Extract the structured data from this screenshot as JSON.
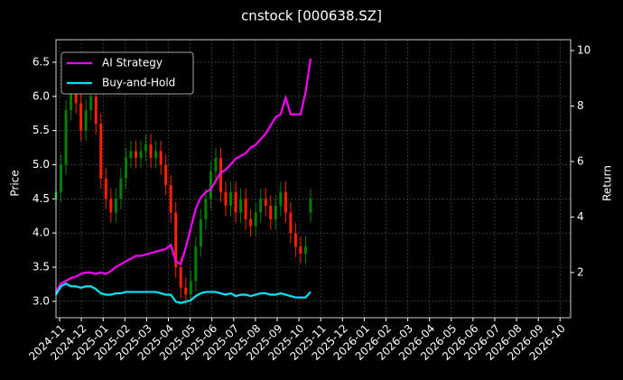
{
  "chart_data": {
    "type": "candlestick",
    "title": "cnstock [000638.SZ]",
    "y_label": "Price",
    "y2_label": "Return",
    "grid": true,
    "legend": "upper left",
    "up_color": "#008000",
    "down_color": "#ff2000",
    "xticks": [
      "2024-11",
      "2024-12",
      "2025-01",
      "2025-02",
      "2025-03",
      "2025-04",
      "2025-05",
      "2025-06",
      "2025-07",
      "2025-08",
      "2025-09",
      "2025-10",
      "2025-11",
      "2025-12",
      "2026-01",
      "2026-02",
      "2026-03",
      "2026-04",
      "2026-05",
      "2026-06",
      "2026-07",
      "2026-08",
      "2026-09",
      "2026-10"
    ],
    "ylim": [
      2.76,
      6.83
    ],
    "yticks": [
      {
        "value": 3,
        "label": "3.0"
      },
      3.5,
      {
        "value": 4,
        "label": "4.0"
      },
      4.5,
      {
        "value": 5,
        "label": "5.0"
      },
      5.5,
      {
        "value": 6,
        "label": "6.0"
      },
      6.5
    ],
    "y2lim": [
      0.37,
      10.39
    ],
    "y2ticks": [
      2,
      4,
      6,
      8,
      10
    ],
    "open": [
      4.5,
      4.6,
      5.0,
      5.8,
      6.2,
      5.9,
      5.5,
      5.8,
      6.0,
      5.6,
      4.8,
      4.5,
      4.3,
      4.5,
      4.8,
      5.1,
      5.2,
      5.1,
      5.2,
      5.3,
      5.1,
      5.2,
      5.0,
      4.7,
      4.3,
      3.5,
      3.2,
      3.1,
      3.3,
      3.8,
      4.2,
      4.5,
      4.9,
      5.1,
      4.6,
      4.4,
      4.6,
      4.3,
      4.5,
      4.2,
      4.1,
      4.3,
      4.5,
      4.4,
      4.2,
      4.4,
      4.6,
      4.3,
      4.0,
      3.8,
      3.7,
      4.3
    ],
    "high": [
      4.75,
      5.15,
      5.95,
      6.35,
      6.35,
      6.05,
      5.95,
      6.15,
      6.15,
      5.75,
      4.95,
      4.65,
      4.65,
      4.95,
      5.25,
      5.35,
      5.35,
      5.35,
      5.45,
      5.45,
      5.35,
      5.35,
      5.15,
      4.85,
      4.45,
      3.65,
      3.35,
      3.45,
      3.95,
      4.35,
      4.65,
      5.05,
      5.25,
      5.25,
      4.75,
      4.75,
      4.75,
      4.65,
      4.65,
      4.35,
      4.45,
      4.65,
      4.65,
      4.55,
      4.55,
      4.75,
      4.75,
      4.45,
      4.15,
      3.95,
      3.95,
      4.65
    ],
    "low": [
      4.35,
      4.45,
      4.85,
      5.65,
      5.75,
      5.35,
      5.35,
      5.65,
      5.45,
      4.65,
      4.35,
      4.15,
      4.15,
      4.35,
      4.65,
      4.95,
      4.95,
      4.95,
      5.05,
      4.95,
      4.95,
      4.85,
      4.55,
      4.15,
      3.35,
      3.05,
      2.95,
      2.95,
      3.15,
      3.65,
      4.05,
      4.35,
      4.75,
      4.45,
      4.25,
      4.25,
      4.15,
      4.15,
      4.05,
      3.95,
      3.95,
      4.15,
      4.25,
      4.05,
      4.05,
      4.25,
      4.15,
      3.85,
      3.65,
      3.55,
      3.55,
      4.15
    ],
    "close": [
      4.6,
      5.0,
      5.8,
      6.2,
      5.9,
      5.5,
      5.8,
      6.0,
      5.6,
      4.8,
      4.5,
      4.3,
      4.5,
      4.8,
      5.1,
      5.2,
      5.1,
      5.2,
      5.3,
      5.1,
      5.2,
      5.0,
      4.7,
      4.3,
      3.5,
      3.2,
      3.1,
      3.3,
      3.8,
      4.2,
      4.5,
      4.9,
      5.1,
      4.6,
      4.4,
      4.6,
      4.3,
      4.5,
      4.2,
      4.1,
      4.3,
      4.5,
      4.4,
      4.2,
      4.4,
      4.6,
      4.3,
      4.0,
      3.8,
      3.7,
      3.8,
      4.5
    ],
    "series": [
      {
        "name": "AI Strategy",
        "color": "#ff00ff",
        "axis": "y2",
        "values": [
          1.3,
          1.6,
          1.7,
          1.8,
          1.85,
          1.95,
          2.0,
          2.0,
          1.95,
          2.0,
          1.95,
          2.05,
          2.2,
          2.3,
          2.4,
          2.5,
          2.6,
          2.6,
          2.65,
          2.7,
          2.75,
          2.8,
          2.85,
          3.0,
          2.4,
          2.3,
          2.9,
          3.6,
          4.3,
          4.7,
          4.9,
          5.0,
          5.3,
          5.6,
          5.7,
          5.9,
          6.1,
          6.2,
          6.3,
          6.5,
          6.6,
          6.8,
          7.0,
          7.3,
          7.6,
          7.7,
          8.3,
          7.7,
          7.7,
          7.7,
          8.5,
          9.7
        ]
      },
      {
        "name": "Buy-and-Hold",
        "color": "#00e5ff",
        "axis": "y2",
        "values": [
          1.2,
          1.5,
          1.6,
          1.5,
          1.5,
          1.45,
          1.5,
          1.5,
          1.4,
          1.25,
          1.2,
          1.2,
          1.25,
          1.25,
          1.3,
          1.3,
          1.3,
          1.3,
          1.3,
          1.3,
          1.3,
          1.25,
          1.2,
          1.2,
          0.95,
          0.9,
          0.95,
          1.0,
          1.15,
          1.25,
          1.3,
          1.3,
          1.3,
          1.25,
          1.2,
          1.25,
          1.15,
          1.2,
          1.2,
          1.15,
          1.2,
          1.25,
          1.25,
          1.2,
          1.2,
          1.25,
          1.2,
          1.15,
          1.1,
          1.1,
          1.1,
          1.3
        ]
      }
    ]
  }
}
